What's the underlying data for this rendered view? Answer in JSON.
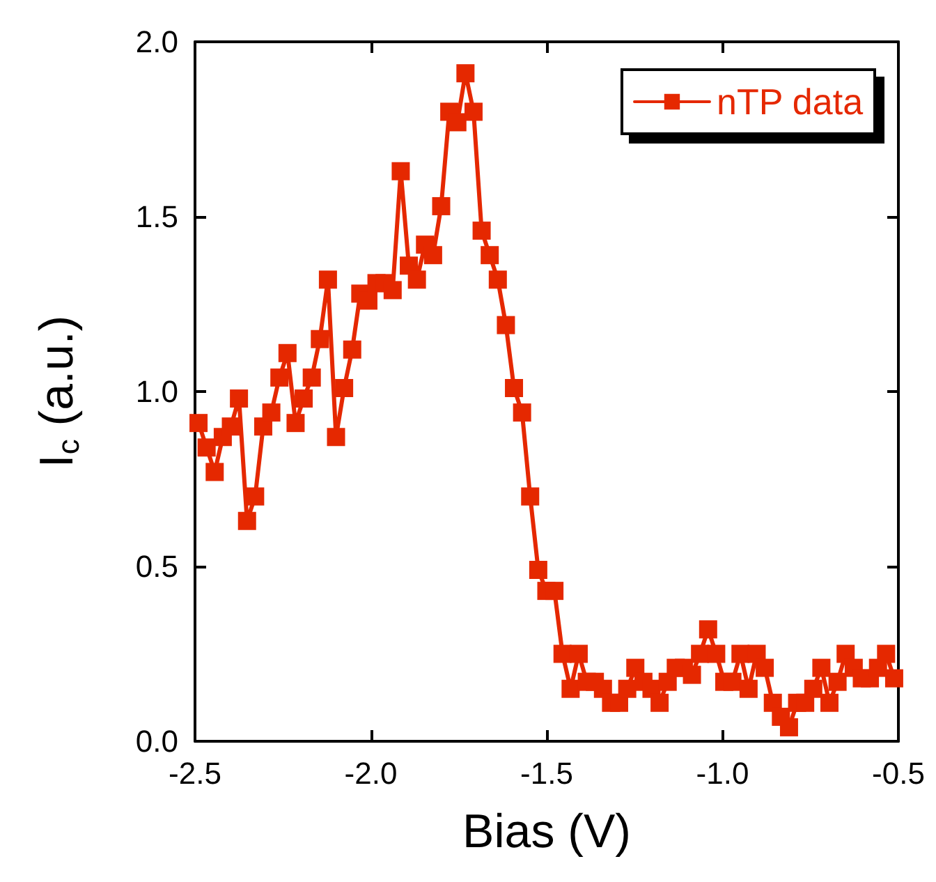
{
  "chart_data": {
    "type": "line",
    "xlabel": "Bias (V)",
    "ylabel": "I$_{c}$ (a.u.)",
    "x": [
      -2.49,
      -2.467,
      -2.444,
      -2.421,
      -2.398,
      -2.375,
      -2.352,
      -2.329,
      -2.306,
      -2.283,
      -2.26,
      -2.237,
      -2.214,
      -2.191,
      -2.168,
      -2.145,
      -2.122,
      -2.099,
      -2.076,
      -2.053,
      -2.03,
      -2.007,
      -1.984,
      -1.961,
      -1.938,
      -1.915,
      -1.892,
      -1.869,
      -1.846,
      -1.823,
      -1.8,
      -1.777,
      -1.754,
      -1.731,
      -1.708,
      -1.685,
      -1.662,
      -1.639,
      -1.616,
      -1.593,
      -1.57,
      -1.547,
      -1.524,
      -1.501,
      -1.478,
      -1.455,
      -1.432,
      -1.409,
      -1.386,
      -1.363,
      -1.34,
      -1.317,
      -1.294,
      -1.271,
      -1.248,
      -1.225,
      -1.202,
      -1.179,
      -1.156,
      -1.133,
      -1.11,
      -1.087,
      -1.064,
      -1.041,
      -1.018,
      -0.995,
      -0.972,
      -0.949,
      -0.926,
      -0.903,
      -0.88,
      -0.857,
      -0.834,
      -0.811,
      -0.788,
      -0.765,
      -0.742,
      -0.719,
      -0.696,
      -0.673,
      -0.65,
      -0.627,
      -0.604,
      -0.581,
      -0.558,
      -0.535,
      -0.512
    ],
    "series": [
      {
        "name": "nTP data",
        "color": "#e52800",
        "values": [
          0.91,
          0.84,
          0.77,
          0.87,
          0.9,
          0.98,
          0.63,
          0.7,
          0.9,
          0.94,
          1.04,
          1.11,
          0.91,
          0.98,
          1.04,
          1.15,
          1.32,
          0.87,
          1.01,
          1.12,
          1.28,
          1.26,
          1.31,
          1.31,
          1.29,
          1.63,
          1.36,
          1.32,
          1.42,
          1.39,
          1.53,
          1.8,
          1.77,
          1.91,
          1.8,
          1.46,
          1.39,
          1.32,
          1.19,
          1.01,
          0.94,
          0.7,
          0.49,
          0.43,
          0.43,
          0.25,
          0.15,
          0.25,
          0.17,
          0.17,
          0.15,
          0.11,
          0.11,
          0.15,
          0.21,
          0.17,
          0.15,
          0.11,
          0.17,
          0.21,
          0.21,
          0.19,
          0.25,
          0.32,
          0.25,
          0.17,
          0.17,
          0.25,
          0.15,
          0.25,
          0.21,
          0.11,
          0.07,
          0.04,
          0.11,
          0.11,
          0.15,
          0.21,
          0.11,
          0.17,
          0.25,
          0.21,
          0.18,
          0.18,
          0.21,
          0.25,
          0.18
        ]
      }
    ],
    "xlim": [
      -2.5,
      -0.5
    ],
    "xticks": [
      -2.5,
      {
        "value": -2,
        "label": "-2.0"
      },
      -1.5,
      {
        "value": -1,
        "label": "-1.0"
      },
      -0.5
    ],
    "ylim": [
      0,
      2
    ],
    "yticks": [
      {
        "value": 0,
        "label": "0.0"
      },
      0.5,
      {
        "value": 1,
        "label": "1.0"
      },
      1.5,
      {
        "value": 2,
        "label": "2.0"
      }
    ],
    "grid": false,
    "legend": "top right",
    "marker": "square",
    "line_style": "solid"
  }
}
